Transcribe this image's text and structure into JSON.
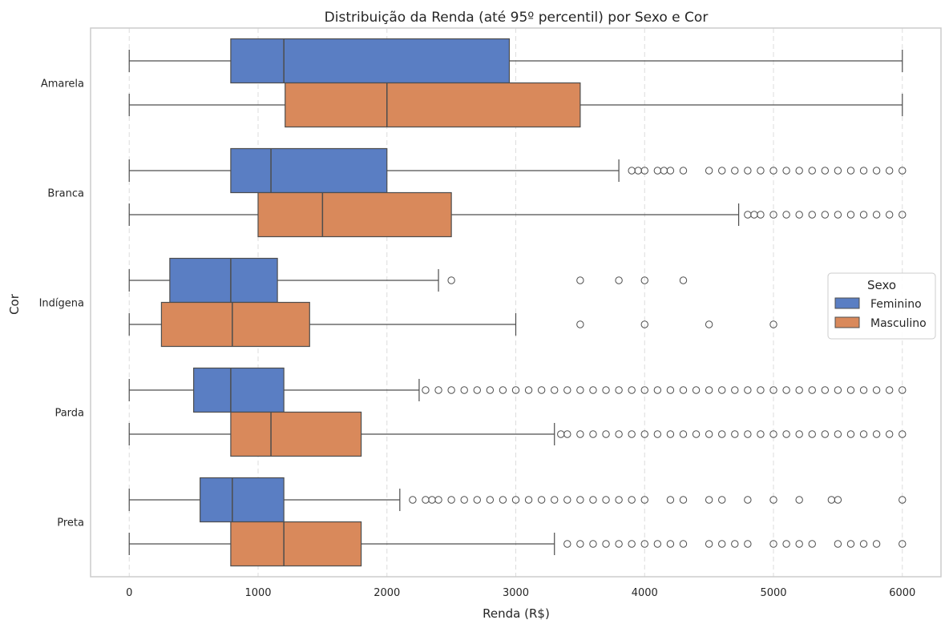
{
  "chart_data": {
    "type": "boxplot",
    "orientation": "horizontal",
    "title": "Distribuição da Renda (até 95º percentil) por Sexo e Cor",
    "xlabel": "Renda (R$)",
    "ylabel": "Cor",
    "xlim": [
      -300,
      6300
    ],
    "xticks": [
      0,
      1000,
      2000,
      3000,
      4000,
      5000,
      6000
    ],
    "grid": "x-dashed",
    "legend": {
      "title": "Sexo",
      "placement": "right"
    },
    "categories": [
      "Amarela",
      "Branca",
      "Indígena",
      "Parda",
      "Preta"
    ],
    "series": [
      {
        "name": "Feminino",
        "color": "#5a7ec3",
        "boxes": [
          {
            "category": "Amarela",
            "whisker_low": 0,
            "q1": 788,
            "median": 1200,
            "q3": 2950,
            "whisker_high": 6000,
            "outliers": []
          },
          {
            "category": "Branca",
            "whisker_low": 0,
            "q1": 788,
            "median": 1100,
            "q3": 2000,
            "whisker_high": 3800,
            "outliers": [
              3900,
              3950,
              4000,
              4100,
              4150,
              4200,
              4300,
              4500,
              4600,
              4700,
              4800,
              4900,
              5000,
              5100,
              5200,
              5300,
              5400,
              5500,
              5600,
              5700,
              5800,
              5900,
              6000
            ]
          },
          {
            "category": "Indígena",
            "whisker_low": 0,
            "q1": 315,
            "median": 788,
            "q3": 1150,
            "whisker_high": 2400,
            "outliers": [
              2500,
              3500,
              3800,
              4000,
              4300
            ]
          },
          {
            "category": "Parda",
            "whisker_low": 0,
            "q1": 500,
            "median": 788,
            "q3": 1200,
            "whisker_high": 2250,
            "outliers": [
              2300,
              2400,
              2500,
              2600,
              2700,
              2800,
              2900,
              3000,
              3100,
              3200,
              3300,
              3400,
              3500,
              3600,
              3700,
              3800,
              3900,
              4000,
              4100,
              4200,
              4300,
              4400,
              4500,
              4600,
              4700,
              4800,
              4900,
              5000,
              5100,
              5200,
              5300,
              5400,
              5500,
              5600,
              5700,
              5800,
              5900,
              6000
            ]
          },
          {
            "category": "Preta",
            "whisker_low": 0,
            "q1": 550,
            "median": 800,
            "q3": 1200,
            "whisker_high": 2100,
            "outliers": [
              2200,
              2300,
              2350,
              2400,
              2500,
              2600,
              2700,
              2800,
              2900,
              3000,
              3100,
              3200,
              3300,
              3400,
              3500,
              3600,
              3700,
              3800,
              3900,
              4000,
              4200,
              4300,
              4500,
              4600,
              4800,
              5000,
              5200,
              5450,
              5500,
              6000
            ]
          }
        ]
      },
      {
        "name": "Masculino",
        "color": "#d9895b",
        "boxes": [
          {
            "category": "Amarela",
            "whisker_low": 0,
            "q1": 1210,
            "median": 2000,
            "q3": 3500,
            "whisker_high": 6000,
            "outliers": []
          },
          {
            "category": "Branca",
            "whisker_low": 0,
            "q1": 1000,
            "median": 1500,
            "q3": 2500,
            "whisker_high": 4730,
            "outliers": [
              4800,
              4850,
              4900,
              5000,
              5100,
              5200,
              5300,
              5400,
              5500,
              5600,
              5700,
              5800,
              5900,
              6000
            ]
          },
          {
            "category": "Indígena",
            "whisker_low": 0,
            "q1": 250,
            "median": 800,
            "q3": 1400,
            "whisker_high": 3000,
            "outliers": [
              3500,
              4000,
              4500,
              5000
            ]
          },
          {
            "category": "Parda",
            "whisker_low": 0,
            "q1": 788,
            "median": 1100,
            "q3": 1800,
            "whisker_high": 3300,
            "outliers": [
              3350,
              3400,
              3500,
              3600,
              3700,
              3800,
              3900,
              4000,
              4100,
              4200,
              4300,
              4400,
              4500,
              4600,
              4700,
              4800,
              4900,
              5000,
              5100,
              5200,
              5300,
              5400,
              5500,
              5600,
              5700,
              5800,
              5900,
              6000
            ]
          },
          {
            "category": "Preta",
            "whisker_low": 0,
            "q1": 788,
            "median": 1200,
            "q3": 1800,
            "whisker_high": 3300,
            "outliers": [
              3400,
              3500,
              3600,
              3700,
              3800,
              3900,
              4000,
              4100,
              4200,
              4300,
              4500,
              4600,
              4700,
              4800,
              5000,
              5100,
              5200,
              5300,
              5500,
              5600,
              5700,
              5800,
              6000
            ]
          }
        ]
      }
    ]
  }
}
